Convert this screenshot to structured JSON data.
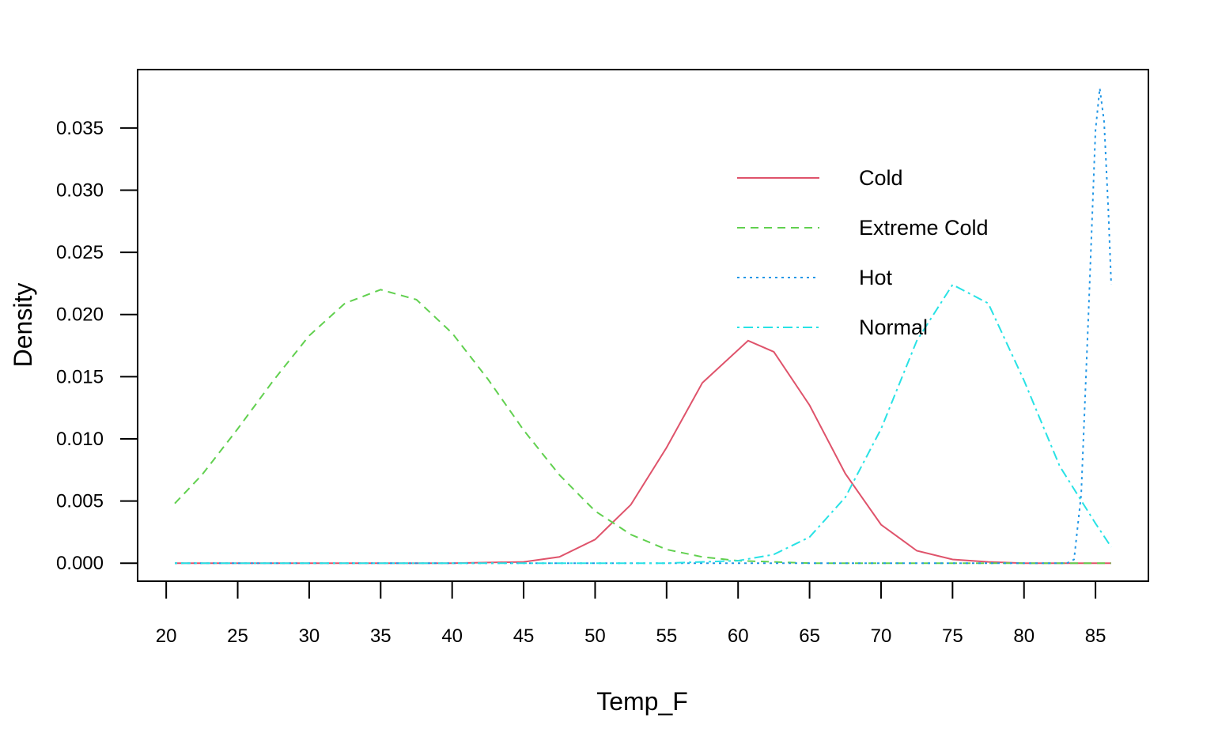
{
  "chart_data": {
    "type": "line",
    "title": "",
    "xlabel": "Temp_F",
    "ylabel": "Density",
    "xlim": [
      18,
      88.7
    ],
    "ylim": [
      -0.00145,
      0.0397
    ],
    "x_ticks": [
      20,
      25,
      30,
      35,
      40,
      45,
      50,
      55,
      60,
      65,
      70,
      75,
      80,
      85
    ],
    "y_ticks": [
      0.0,
      0.005,
      0.01,
      0.015,
      0.02,
      0.025,
      0.03,
      0.035
    ],
    "y_tick_labels": [
      "0.000",
      "0.005",
      "0.010",
      "0.015",
      "0.020",
      "0.025",
      "0.030",
      "0.035"
    ],
    "grid": false,
    "legend_position": "top-right",
    "series": [
      {
        "name": "Cold",
        "color": "#DF536B",
        "dash": "solid",
        "points": [
          [
            20.6,
            0.0
          ],
          [
            40,
            0.0
          ],
          [
            45,
            0.0001
          ],
          [
            47.5,
            0.0005
          ],
          [
            50,
            0.0019
          ],
          [
            52.5,
            0.0047
          ],
          [
            55,
            0.0093
          ],
          [
            57.5,
            0.0145
          ],
          [
            60.7,
            0.0179
          ],
          [
            62.5,
            0.017
          ],
          [
            65,
            0.0127
          ],
          [
            67.5,
            0.0072
          ],
          [
            70,
            0.0031
          ],
          [
            72.5,
            0.001
          ],
          [
            75,
            0.0003
          ],
          [
            77.5,
            0.0001
          ],
          [
            80,
            0.0
          ],
          [
            86.1,
            0.0
          ]
        ]
      },
      {
        "name": "Extreme Cold",
        "color": "#61D04F",
        "dash": "dashed",
        "points": [
          [
            20.6,
            0.0048
          ],
          [
            22.5,
            0.0071
          ],
          [
            25,
            0.0108
          ],
          [
            27.5,
            0.0147
          ],
          [
            30,
            0.0183
          ],
          [
            32.5,
            0.0209
          ],
          [
            35,
            0.022
          ],
          [
            37.5,
            0.0212
          ],
          [
            40,
            0.0185
          ],
          [
            42.5,
            0.0148
          ],
          [
            45,
            0.0107
          ],
          [
            47.5,
            0.0071
          ],
          [
            50,
            0.0042
          ],
          [
            52.5,
            0.0023
          ],
          [
            55,
            0.0011
          ],
          [
            57.5,
            0.0005
          ],
          [
            60,
            0.0002
          ],
          [
            62.5,
            0.0001
          ],
          [
            65,
            0.0
          ],
          [
            86.1,
            0.0
          ]
        ]
      },
      {
        "name": "Hot",
        "color": "#2297E6",
        "dash": "dotted",
        "points": [
          [
            20.6,
            0.0
          ],
          [
            83.0,
            0.0
          ],
          [
            83.5,
            0.0003
          ],
          [
            84.0,
            0.0055
          ],
          [
            84.5,
            0.0198
          ],
          [
            85.0,
            0.0348
          ],
          [
            85.3,
            0.0382
          ],
          [
            85.6,
            0.0355
          ],
          [
            85.9,
            0.0283
          ],
          [
            86.1,
            0.0224
          ]
        ]
      },
      {
        "name": "Normal",
        "color": "#28E2E5",
        "dash": "dotdash",
        "points": [
          [
            20.6,
            0.0
          ],
          [
            45,
            0.0
          ],
          [
            55,
            0.0
          ],
          [
            57.5,
            0.0001
          ],
          [
            60,
            0.0002
          ],
          [
            62.5,
            0.0007
          ],
          [
            65,
            0.0021
          ],
          [
            67.5,
            0.0053
          ],
          [
            70,
            0.0108
          ],
          [
            72.5,
            0.0179
          ],
          [
            75,
            0.0224
          ],
          [
            77.5,
            0.0209
          ],
          [
            80,
            0.0147
          ],
          [
            82.5,
            0.0078
          ],
          [
            85,
            0.0032
          ],
          [
            86.1,
            0.0013
          ]
        ]
      }
    ]
  }
}
